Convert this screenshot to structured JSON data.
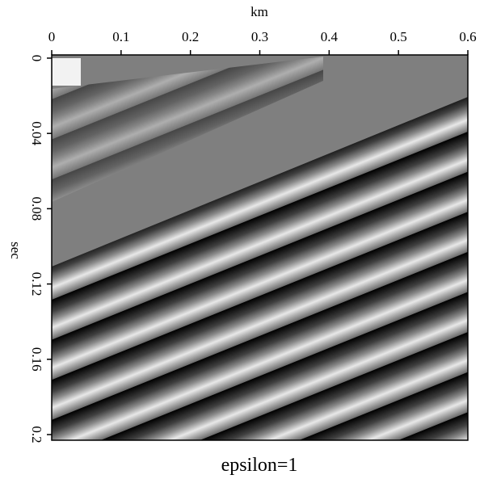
{
  "chart_data": {
    "type": "image",
    "title": "epsilon=1",
    "xlabel": "km",
    "ylabel": "sec",
    "xlim": [
      0,
      0.6
    ],
    "xticks": [
      0,
      0.1,
      0.2,
      0.3,
      0.4,
      0.5,
      0.6
    ],
    "ylim": [
      -0.0017,
      0.203
    ],
    "yticks": [
      0,
      0.04,
      0.08,
      0.12,
      0.16,
      0.2
    ]
  }
}
